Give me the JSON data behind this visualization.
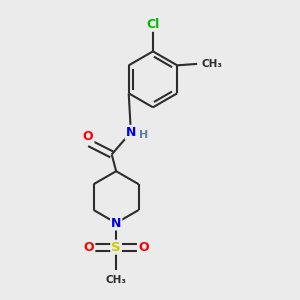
{
  "background_color": "#ebebeb",
  "bond_color": "#2d2d2d",
  "atom_colors": {
    "Cl": "#00bb00",
    "O": "#ff0000",
    "N": "#0000ee",
    "S": "#cccc00",
    "H": "#6080a0",
    "C": "#2d2d2d"
  },
  "figsize": [
    3.0,
    3.0
  ],
  "dpi": 100
}
